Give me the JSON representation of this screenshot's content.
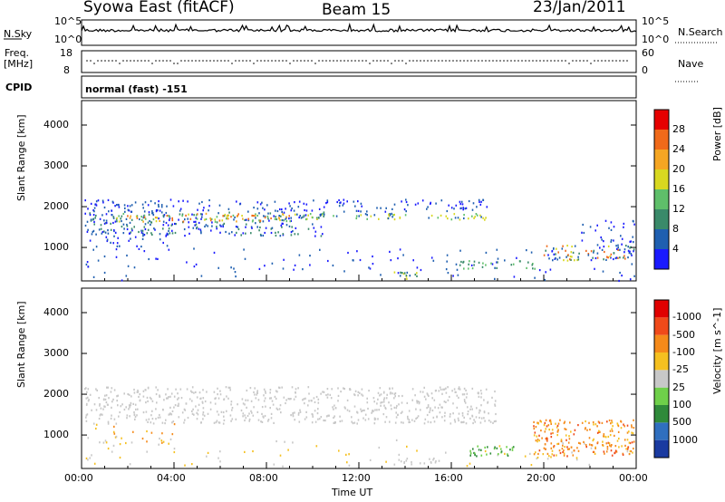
{
  "header": {
    "title": "Syowa East (fitACF)",
    "beam": "Beam 15",
    "date": "23/Jan/2011"
  },
  "top_panels": {
    "nsky_label": "N.Sky",
    "nsky_ticks": [
      "10^5",
      "10^0"
    ],
    "nsearch_label": "N.Search",
    "nsearch_ticks": [
      "10^5",
      "10^0"
    ],
    "freq_label": "Freq.",
    "freq_unit": "[MHz]",
    "freq_ticks": [
      "18",
      "8"
    ],
    "nave_label": "Nave",
    "nave_ticks": [
      "60",
      "0"
    ],
    "cpid_label": "CPID",
    "cpid_value": "normal (fast) -151"
  },
  "chart_data": [
    {
      "type": "heatmap",
      "name": "power-panel",
      "ylabel": "Slant Range [km]",
      "ylim": [
        180,
        4600
      ],
      "yticks": [
        1000,
        2000,
        3000,
        4000
      ],
      "xlim": [
        0,
        24
      ],
      "xticks": [
        "00:00",
        "04:00",
        "08:00",
        "12:00",
        "16:00",
        "20:00",
        "00:00"
      ],
      "colorbar_label": "Power [dB]",
      "colorbar_ticks": [
        "4",
        "8",
        "12",
        "16",
        "20",
        "24",
        "28"
      ],
      "colorbar_colors": [
        "#1a1aff",
        "#1f5fb0",
        "#3a8a6a",
        "#5fbf6a",
        "#d8d820",
        "#f5a623",
        "#f06a1a",
        "#e60000"
      ]
    },
    {
      "type": "heatmap",
      "name": "velocity-panel",
      "ylabel": "Slant Range [km]",
      "ylim": [
        180,
        4600
      ],
      "yticks": [
        1000,
        2000,
        3000,
        4000
      ],
      "xlim": [
        0,
        24
      ],
      "xticks": [
        "00:00",
        "04:00",
        "08:00",
        "12:00",
        "16:00",
        "20:00",
        "00:00"
      ],
      "xlabel": "Time UT",
      "colorbar_label": "Velocity [m s^-1]",
      "colorbar_ticks": [
        "1000",
        "500",
        "100",
        "25",
        "-25",
        "-100",
        "-500",
        "-1000"
      ],
      "colorbar_colors": [
        "#1a3aa0",
        "#2f6fbf",
        "#2f8a3a",
        "#6fd04a",
        "#c8c8c8",
        "#f5c020",
        "#f58a1a",
        "#f04a1a",
        "#e00000"
      ]
    }
  ]
}
